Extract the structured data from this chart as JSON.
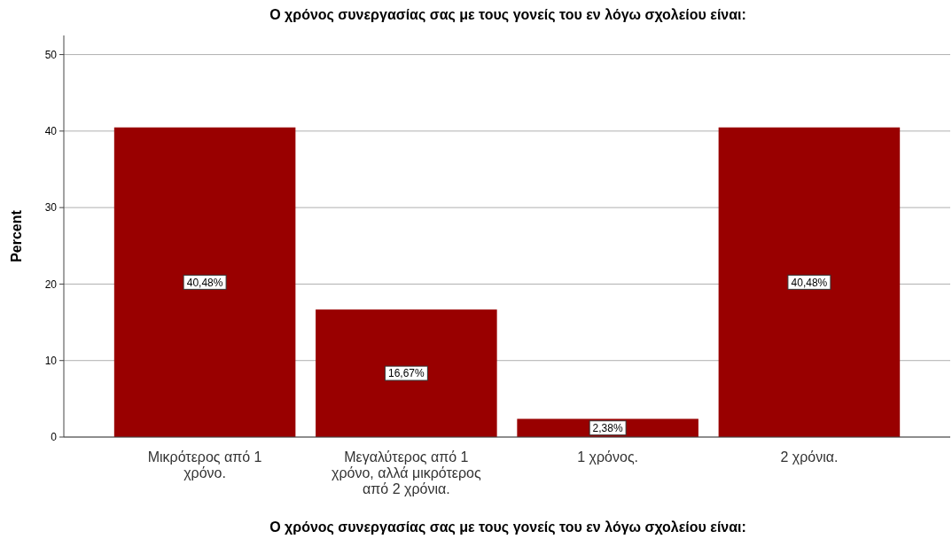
{
  "chart_data": {
    "type": "bar",
    "title": "Ο χρόνος συνεργασίας σας με τους γονείς του εν λόγω σχολείου είναι:",
    "xlabel": "Ο χρόνος συνεργασίας σας με τους γονείς του εν λόγω σχολείου είναι:",
    "ylabel": "Percent",
    "categories": [
      "Μικρότερος από 1 χρόνο.",
      "Μεγαλύτερος από 1 χρόνο, αλλά μικρότερος από 2 χρόνια.",
      "1 χρόνος.",
      "2 χρόνια."
    ],
    "values": [
      40.48,
      16.67,
      2.38,
      40.48
    ],
    "value_labels": [
      "40,48%",
      "16,67%",
      "2,38%",
      "40,48%"
    ],
    "color": "#990000",
    "ylim": [
      0,
      52.5
    ],
    "yticks": [
      0,
      10,
      20,
      30,
      40,
      50
    ],
    "grid": "y"
  }
}
